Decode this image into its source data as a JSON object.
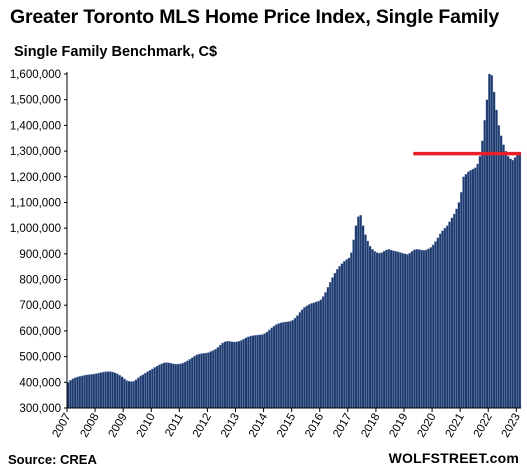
{
  "title": "Greater Toronto  MLS Home Price Index, Single Family",
  "subtitle": "Single Family Benchmark, C$",
  "source": "Source: CREA",
  "brand": "WOLFSTREET.com",
  "colors": {
    "bar_fill": "#1f3b6e",
    "bar_edge": "#8fa4c8",
    "reference_line": "#e8202a",
    "axis": "#000000"
  },
  "chart_data": {
    "type": "bar",
    "title": "Greater Toronto  MLS Home Price Index, Single Family",
    "subtitle": "Single Family Benchmark, C$",
    "ylabel": "",
    "xlabel": "",
    "ylim": [
      300000,
      1600000
    ],
    "y_ticks": [
      300000,
      400000,
      500000,
      600000,
      700000,
      800000,
      900000,
      1000000,
      1100000,
      1200000,
      1300000,
      1400000,
      1500000,
      1600000
    ],
    "y_tick_labels": [
      "300,000",
      "400,000",
      "500,000",
      "600,000",
      "700,000",
      "800,000",
      "900,000",
      "1,000,000",
      "1,100,000",
      "1,200,000",
      "1,300,000",
      "1,400,000",
      "1,500,000",
      "1,600,000"
    ],
    "x_tick_labels": [
      "2007",
      "2008",
      "2009",
      "2010",
      "2011",
      "2012",
      "2013",
      "2014",
      "2015",
      "2016",
      "2017",
      "2018",
      "2019",
      "2020",
      "2021",
      "2022",
      "2023"
    ],
    "x_start": "2007-01",
    "frequency": "monthly",
    "values": [
      400000,
      408000,
      414000,
      418000,
      421000,
      423000,
      425000,
      427000,
      429000,
      430000,
      431000,
      432000,
      434000,
      436000,
      438000,
      440000,
      441000,
      442000,
      442000,
      440000,
      437000,
      433000,
      428000,
      422000,
      414000,
      407000,
      404000,
      403000,
      404000,
      410000,
      418000,
      425000,
      430000,
      436000,
      442000,
      447000,
      452000,
      458000,
      463000,
      468000,
      472000,
      476000,
      477000,
      476000,
      474000,
      472000,
      471000,
      471000,
      472000,
      475000,
      479000,
      484000,
      490000,
      496000,
      502000,
      507000,
      510000,
      512000,
      513000,
      514000,
      516000,
      520000,
      524000,
      529000,
      536000,
      545000,
      553000,
      558000,
      560000,
      560000,
      558000,
      557000,
      558000,
      560000,
      563000,
      568000,
      573000,
      577000,
      580000,
      582000,
      583000,
      584000,
      585000,
      586000,
      590000,
      596000,
      604000,
      612000,
      619000,
      625000,
      629000,
      632000,
      634000,
      635000,
      636000,
      638000,
      642000,
      650000,
      660000,
      672000,
      683000,
      692000,
      698000,
      703000,
      707000,
      710000,
      713000,
      716000,
      722000,
      734000,
      750000,
      770000,
      790000,
      808000,
      825000,
      840000,
      852000,
      862000,
      871000,
      878000,
      884000,
      905000,
      955000,
      1010000,
      1045000,
      1050000,
      1010000,
      975000,
      950000,
      930000,
      918000,
      910000,
      905000,
      903000,
      905000,
      910000,
      915000,
      918000,
      915000,
      912000,
      910000,
      908000,
      905000,
      902000,
      900000,
      898000,
      903000,
      910000,
      916000,
      918000,
      917000,
      915000,
      914000,
      915000,
      920000,
      925000,
      935000,
      948000,
      963000,
      978000,
      990000,
      1000000,
      1010000,
      1025000,
      1040000,
      1055000,
      1075000,
      1100000,
      1140000,
      1200000,
      1210000,
      1220000,
      1225000,
      1230000,
      1235000,
      1250000,
      1280000,
      1340000,
      1420000,
      1500000,
      1600000,
      1595000,
      1530000,
      1460000,
      1400000,
      1360000,
      1325000,
      1300000,
      1280000,
      1270000,
      1265000,
      1275000,
      1285000,
      1295000
    ],
    "annotations": [
      {
        "type": "horizontal_line",
        "y": 1290000,
        "x_from": "2019-05",
        "x_to": "2023-02"
      }
    ],
    "grid": false,
    "legend": "none"
  }
}
